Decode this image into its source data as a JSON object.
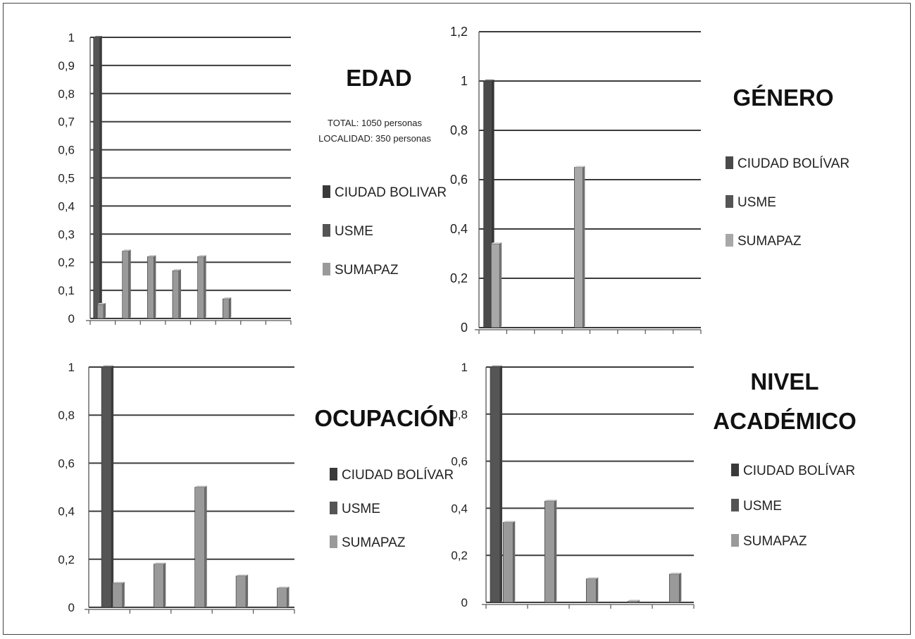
{
  "chart_data": [
    {
      "type": "bar",
      "title": "EDAD",
      "notes": [
        "TOTAL: 1050 personas",
        "LOCALIDAD: 350  personas"
      ],
      "ylim": [
        0,
        1
      ],
      "yticks": [
        "0",
        "0,1",
        "0,2",
        "0,3",
        "0,4",
        "0,5",
        "0,6",
        "0,7",
        "0,8",
        "0,9",
        "1"
      ],
      "category_count": 8,
      "grid": true,
      "legend_position": "right",
      "series": [
        {
          "name": "CIUDAD BOLIVAR",
          "color": "#3a3a3a",
          "values": [
            0,
            0,
            0,
            0,
            0,
            0,
            0,
            0
          ]
        },
        {
          "name": "USME",
          "color": "#555555",
          "values": [
            1,
            0,
            0,
            0,
            0,
            0,
            0,
            0
          ]
        },
        {
          "name": "SUMAPAZ",
          "color": "#9a9a9a",
          "values": [
            0.05,
            0.24,
            0.22,
            0.17,
            0.22,
            0.07,
            0,
            0
          ]
        }
      ]
    },
    {
      "type": "bar",
      "title": "GÉNERO",
      "ylim": [
        0,
        1.2
      ],
      "yticks": [
        "0",
        "0,2",
        "0,4",
        "0,6",
        "0,8",
        "1",
        "1,2"
      ],
      "category_count": 8,
      "grid": true,
      "legend_position": "right",
      "series": [
        {
          "name": "CIUDAD BOLÍVAR",
          "color": "#4a4a4a",
          "values": [
            1,
            0,
            0,
            0,
            0,
            0,
            0,
            0
          ]
        },
        {
          "name": "USME",
          "color": "#555555",
          "values": [
            0,
            0,
            0,
            0,
            0,
            0,
            0,
            0
          ]
        },
        {
          "name": "SUMAPAZ",
          "color": "#a8a8a8",
          "values": [
            0.34,
            0,
            0,
            0.65,
            0,
            0,
            0,
            0
          ]
        }
      ]
    },
    {
      "type": "bar",
      "title": "OCUPACIÓN",
      "ylim": [
        0,
        1
      ],
      "yticks": [
        "0",
        "0,2",
        "0,4",
        "0,6",
        "0,8",
        "1"
      ],
      "category_count": 5,
      "grid": true,
      "legend_position": "right",
      "series": [
        {
          "name": "CIUDAD BOLÍVAR",
          "color": "#3a3a3a",
          "values": [
            0,
            0,
            0,
            0,
            0
          ]
        },
        {
          "name": "USME",
          "color": "#555555",
          "values": [
            1,
            0,
            0,
            0,
            0
          ]
        },
        {
          "name": "SUMAPAZ",
          "color": "#9a9a9a",
          "values": [
            0.1,
            0.18,
            0.5,
            0.13,
            0.08
          ]
        }
      ]
    },
    {
      "type": "bar",
      "title": "NIVEL ACADÉMICO",
      "ylim": [
        0,
        1
      ],
      "yticks": [
        "0",
        "0,2",
        "0,4",
        "0,6",
        "0,8",
        "1"
      ],
      "category_count": 5,
      "grid": true,
      "legend_position": "right",
      "series": [
        {
          "name": "CIUDAD BOLÍVAR",
          "color": "#3a3a3a",
          "values": [
            0,
            0,
            0,
            0,
            0
          ]
        },
        {
          "name": "USME",
          "color": "#555555",
          "values": [
            1,
            0,
            0,
            0,
            0
          ]
        },
        {
          "name": "SUMAPAZ",
          "color": "#9a9a9a",
          "values": [
            0.34,
            0.43,
            0.1,
            0.005,
            0.12
          ]
        }
      ]
    }
  ]
}
